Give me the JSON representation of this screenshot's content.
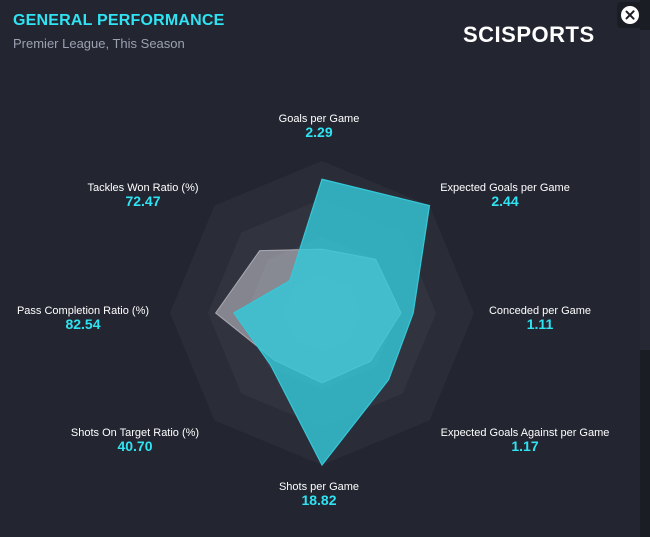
{
  "header": {
    "title": "GENERAL PERFORMANCE",
    "subtitle": "Premier League, This Season",
    "logo_text": "SCISPORTS"
  },
  "colors": {
    "accent": "#2fe3f2",
    "series_fill": "#35c8d8",
    "comparison_fill": "#c9c9d2",
    "ring_1": "#2a2d38",
    "ring_2": "#31343f",
    "ring_3": "#393c48",
    "ring_4": "#414451"
  },
  "close_icon": "close-icon",
  "chart_data": {
    "type": "radar",
    "axes": [
      {
        "name": "Goals per Game",
        "value_label": "2.29"
      },
      {
        "name": "Expected Goals per Game",
        "value_label": "2.44"
      },
      {
        "name": "Conceded per Game",
        "value_label": "1.11"
      },
      {
        "name": "Expected Goals Against per Game",
        "value_label": "1.17"
      },
      {
        "name": "Shots per Game",
        "value_label": "18.82"
      },
      {
        "name": "Shots On Target Ratio (%)",
        "value_label": "40.70"
      },
      {
        "name": "Pass Completion Ratio (%)",
        "value_label": "82.54"
      },
      {
        "name": "Tackles Won Ratio (%)",
        "value_label": "72.47"
      }
    ],
    "series": [
      {
        "values": [
          0.88,
          1.0,
          0.6,
          0.62,
          1.0,
          0.48,
          0.58,
          0.3
        ]
      },
      {
        "values": [
          0.42,
          0.5,
          0.52,
          0.45,
          0.46,
          0.44,
          0.7,
          0.58
        ]
      }
    ],
    "rings": 4,
    "range": [
      0,
      1
    ]
  }
}
